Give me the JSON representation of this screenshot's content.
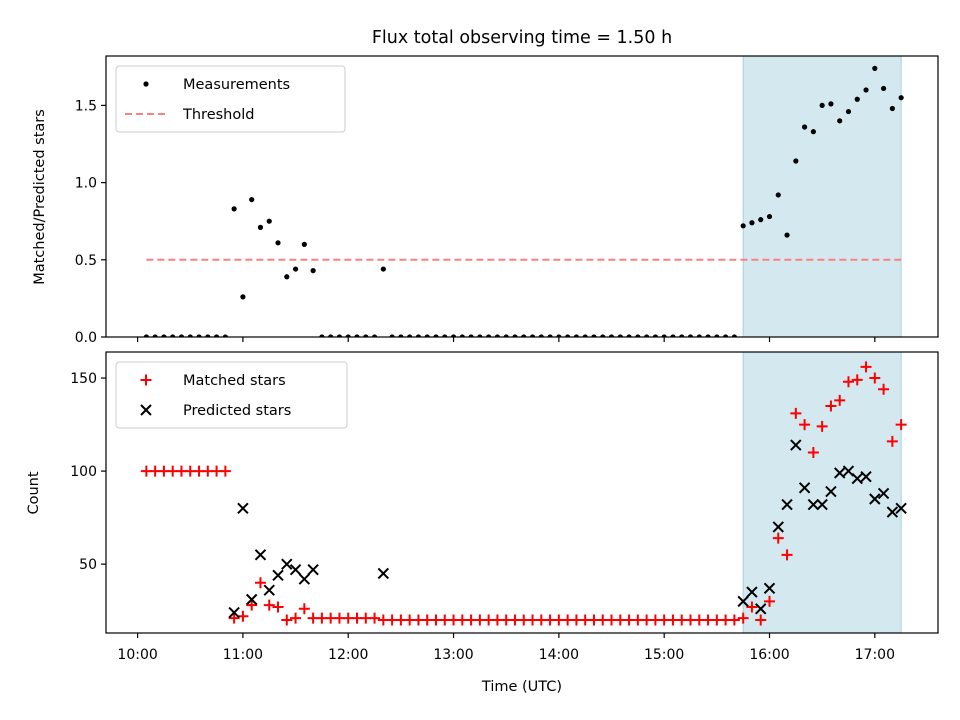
{
  "title": "Flux total observing time = 1.50 h",
  "chart_data": [
    {
      "type": "scatter",
      "ylabel": "Matched/Predicted stars",
      "ylim": [
        0,
        1.82
      ],
      "xlim_hours": [
        9.7,
        17.6
      ],
      "yticks": [
        0.0,
        0.5,
        1.0,
        1.5
      ],
      "ytick_labels": [
        "0.0",
        "0.5",
        "1.0",
        "1.5"
      ],
      "legend_position": "upper-left",
      "shaded_region": {
        "from": "15:45",
        "to": "17:15",
        "color": "#d3e9ef"
      },
      "threshold": {
        "value": 0.5,
        "from": "10:05",
        "to": "17:15",
        "color": "#ff7f7f"
      },
      "legend": [
        {
          "label": "Measurements",
          "marker": "dot",
          "color": "#000000"
        },
        {
          "label": "Threshold",
          "marker": "dashed-line",
          "color": "#ff7f7f"
        }
      ],
      "series": [
        {
          "name": "Measurements",
          "color": "#000000",
          "points": [
            [
              "10:05",
              0
            ],
            [
              "10:10",
              0
            ],
            [
              "10:15",
              0
            ],
            [
              "10:20",
              0
            ],
            [
              "10:25",
              0
            ],
            [
              "10:30",
              0
            ],
            [
              "10:35",
              0
            ],
            [
              "10:40",
              0
            ],
            [
              "10:45",
              0
            ],
            [
              "10:50",
              0
            ],
            [
              "10:55",
              0.83
            ],
            [
              "11:00",
              0.26
            ],
            [
              "11:05",
              0.89
            ],
            [
              "11:10",
              0.71
            ],
            [
              "11:15",
              0.75
            ],
            [
              "11:20",
              0.61
            ],
            [
              "11:25",
              0.39
            ],
            [
              "11:30",
              0.44
            ],
            [
              "11:35",
              0.6
            ],
            [
              "11:40",
              0.43
            ],
            [
              "11:45",
              0
            ],
            [
              "11:50",
              0
            ],
            [
              "11:55",
              0
            ],
            [
              "12:00",
              0
            ],
            [
              "12:05",
              0
            ],
            [
              "12:10",
              0
            ],
            [
              "12:15",
              0
            ],
            [
              "12:20",
              0.44
            ],
            [
              "12:25",
              0
            ],
            [
              "12:30",
              0
            ],
            [
              "12:35",
              0
            ],
            [
              "12:40",
              0
            ],
            [
              "12:45",
              0
            ],
            [
              "12:50",
              0
            ],
            [
              "12:55",
              0
            ],
            [
              "13:00",
              0
            ],
            [
              "13:05",
              0
            ],
            [
              "13:10",
              0
            ],
            [
              "13:15",
              0
            ],
            [
              "13:20",
              0
            ],
            [
              "13:25",
              0
            ],
            [
              "13:30",
              0
            ],
            [
              "13:35",
              0
            ],
            [
              "13:40",
              0
            ],
            [
              "13:45",
              0
            ],
            [
              "13:50",
              0
            ],
            [
              "13:55",
              0
            ],
            [
              "14:00",
              0
            ],
            [
              "14:05",
              0
            ],
            [
              "14:10",
              0
            ],
            [
              "14:15",
              0
            ],
            [
              "14:20",
              0
            ],
            [
              "14:25",
              0
            ],
            [
              "14:30",
              0
            ],
            [
              "14:35",
              0
            ],
            [
              "14:40",
              0
            ],
            [
              "14:45",
              0
            ],
            [
              "14:50",
              0
            ],
            [
              "14:55",
              0
            ],
            [
              "15:00",
              0
            ],
            [
              "15:05",
              0
            ],
            [
              "15:10",
              0
            ],
            [
              "15:15",
              0
            ],
            [
              "15:20",
              0
            ],
            [
              "15:25",
              0
            ],
            [
              "15:30",
              0
            ],
            [
              "15:35",
              0
            ],
            [
              "15:40",
              0
            ],
            [
              "15:45",
              0.72
            ],
            [
              "15:50",
              0.74
            ],
            [
              "15:55",
              0.76
            ],
            [
              "16:00",
              0.78
            ],
            [
              "16:05",
              0.92
            ],
            [
              "16:10",
              0.66
            ],
            [
              "16:15",
              1.14
            ],
            [
              "16:20",
              1.36
            ],
            [
              "16:25",
              1.33
            ],
            [
              "16:30",
              1.5
            ],
            [
              "16:35",
              1.51
            ],
            [
              "16:40",
              1.4
            ],
            [
              "16:45",
              1.46
            ],
            [
              "16:50",
              1.54
            ],
            [
              "16:55",
              1.6
            ],
            [
              "17:00",
              1.74
            ],
            [
              "17:05",
              1.61
            ],
            [
              "17:10",
              1.48
            ],
            [
              "17:15",
              1.55
            ]
          ]
        }
      ]
    },
    {
      "type": "scatter",
      "xlabel": "Time (UTC)",
      "ylabel": "Count",
      "ylim": [
        13,
        164
      ],
      "xlim_hours": [
        9.7,
        17.6
      ],
      "yticks": [
        50,
        100,
        150
      ],
      "ytick_labels": [
        "50",
        "100",
        "150"
      ],
      "xticks": [
        "10:00",
        "11:00",
        "12:00",
        "13:00",
        "14:00",
        "15:00",
        "16:00",
        "17:00"
      ],
      "legend_position": "upper-left",
      "shaded_region": {
        "from": "15:45",
        "to": "17:15",
        "color": "#d3e9ef"
      },
      "legend": [
        {
          "label": "Matched stars",
          "marker": "plus",
          "color": "#ff0000"
        },
        {
          "label": "Predicted stars",
          "marker": "x",
          "color": "#000000"
        }
      ],
      "series": [
        {
          "name": "Matched stars",
          "color": "#ff0000",
          "points": [
            [
              "10:05",
              100
            ],
            [
              "10:10",
              100
            ],
            [
              "10:15",
              100
            ],
            [
              "10:20",
              100
            ],
            [
              "10:25",
              100
            ],
            [
              "10:30",
              100
            ],
            [
              "10:35",
              100
            ],
            [
              "10:40",
              100
            ],
            [
              "10:45",
              100
            ],
            [
              "10:50",
              100
            ],
            [
              "10:55",
              21
            ],
            [
              "11:00",
              22
            ],
            [
              "11:05",
              28
            ],
            [
              "11:10",
              40
            ],
            [
              "11:15",
              28
            ],
            [
              "11:20",
              27
            ],
            [
              "11:25",
              20
            ],
            [
              "11:30",
              21
            ],
            [
              "11:35",
              26
            ],
            [
              "11:40",
              21
            ],
            [
              "11:45",
              21
            ],
            [
              "11:50",
              21
            ],
            [
              "11:55",
              21
            ],
            [
              "12:00",
              21
            ],
            [
              "12:05",
              21
            ],
            [
              "12:10",
              21
            ],
            [
              "12:15",
              21
            ],
            [
              "12:20",
              20
            ],
            [
              "12:25",
              20
            ],
            [
              "12:30",
              20
            ],
            [
              "12:35",
              20
            ],
            [
              "12:40",
              20
            ],
            [
              "12:45",
              20
            ],
            [
              "12:50",
              20
            ],
            [
              "12:55",
              20
            ],
            [
              "13:00",
              20
            ],
            [
              "13:05",
              20
            ],
            [
              "13:10",
              20
            ],
            [
              "13:15",
              20
            ],
            [
              "13:20",
              20
            ],
            [
              "13:25",
              20
            ],
            [
              "13:30",
              20
            ],
            [
              "13:35",
              20
            ],
            [
              "13:40",
              20
            ],
            [
              "13:45",
              20
            ],
            [
              "13:50",
              20
            ],
            [
              "13:55",
              20
            ],
            [
              "14:00",
              20
            ],
            [
              "14:05",
              20
            ],
            [
              "14:10",
              20
            ],
            [
              "14:15",
              20
            ],
            [
              "14:20",
              20
            ],
            [
              "14:25",
              20
            ],
            [
              "14:30",
              20
            ],
            [
              "14:35",
              20
            ],
            [
              "14:40",
              20
            ],
            [
              "14:45",
              20
            ],
            [
              "14:50",
              20
            ],
            [
              "14:55",
              20
            ],
            [
              "15:00",
              20
            ],
            [
              "15:05",
              20
            ],
            [
              "15:10",
              20
            ],
            [
              "15:15",
              20
            ],
            [
              "15:20",
              20
            ],
            [
              "15:25",
              20
            ],
            [
              "15:30",
              20
            ],
            [
              "15:35",
              20
            ],
            [
              "15:40",
              20
            ],
            [
              "15:45",
              21
            ],
            [
              "15:50",
              27
            ],
            [
              "15:55",
              20
            ],
            [
              "16:00",
              30
            ],
            [
              "16:05",
              64
            ],
            [
              "16:10",
              55
            ],
            [
              "16:15",
              131
            ],
            [
              "16:20",
              125
            ],
            [
              "16:25",
              110
            ],
            [
              "16:30",
              124
            ],
            [
              "16:35",
              135
            ],
            [
              "16:40",
              138
            ],
            [
              "16:45",
              148
            ],
            [
              "16:50",
              149
            ],
            [
              "16:55",
              156
            ],
            [
              "17:00",
              150
            ],
            [
              "17:05",
              144
            ],
            [
              "17:10",
              116
            ],
            [
              "17:15",
              125
            ]
          ]
        },
        {
          "name": "Predicted stars",
          "color": "#000000",
          "points": [
            [
              "10:55",
              24
            ],
            [
              "11:00",
              80
            ],
            [
              "11:05",
              31
            ],
            [
              "11:10",
              55
            ],
            [
              "11:15",
              36
            ],
            [
              "11:20",
              44
            ],
            [
              "11:25",
              50
            ],
            [
              "11:30",
              47
            ],
            [
              "11:35",
              42
            ],
            [
              "11:40",
              47
            ],
            [
              "12:20",
              45
            ],
            [
              "15:45",
              30
            ],
            [
              "15:50",
              35
            ],
            [
              "15:55",
              26
            ],
            [
              "16:00",
              37
            ],
            [
              "16:05",
              70
            ],
            [
              "16:10",
              82
            ],
            [
              "16:15",
              114
            ],
            [
              "16:20",
              91
            ],
            [
              "16:25",
              82
            ],
            [
              "16:30",
              82
            ],
            [
              "16:35",
              89
            ],
            [
              "16:40",
              99
            ],
            [
              "16:45",
              100
            ],
            [
              "16:50",
              96
            ],
            [
              "16:55",
              97
            ],
            [
              "17:00",
              85
            ],
            [
              "17:05",
              88
            ],
            [
              "17:10",
              78
            ],
            [
              "17:15",
              80
            ]
          ]
        }
      ]
    }
  ]
}
